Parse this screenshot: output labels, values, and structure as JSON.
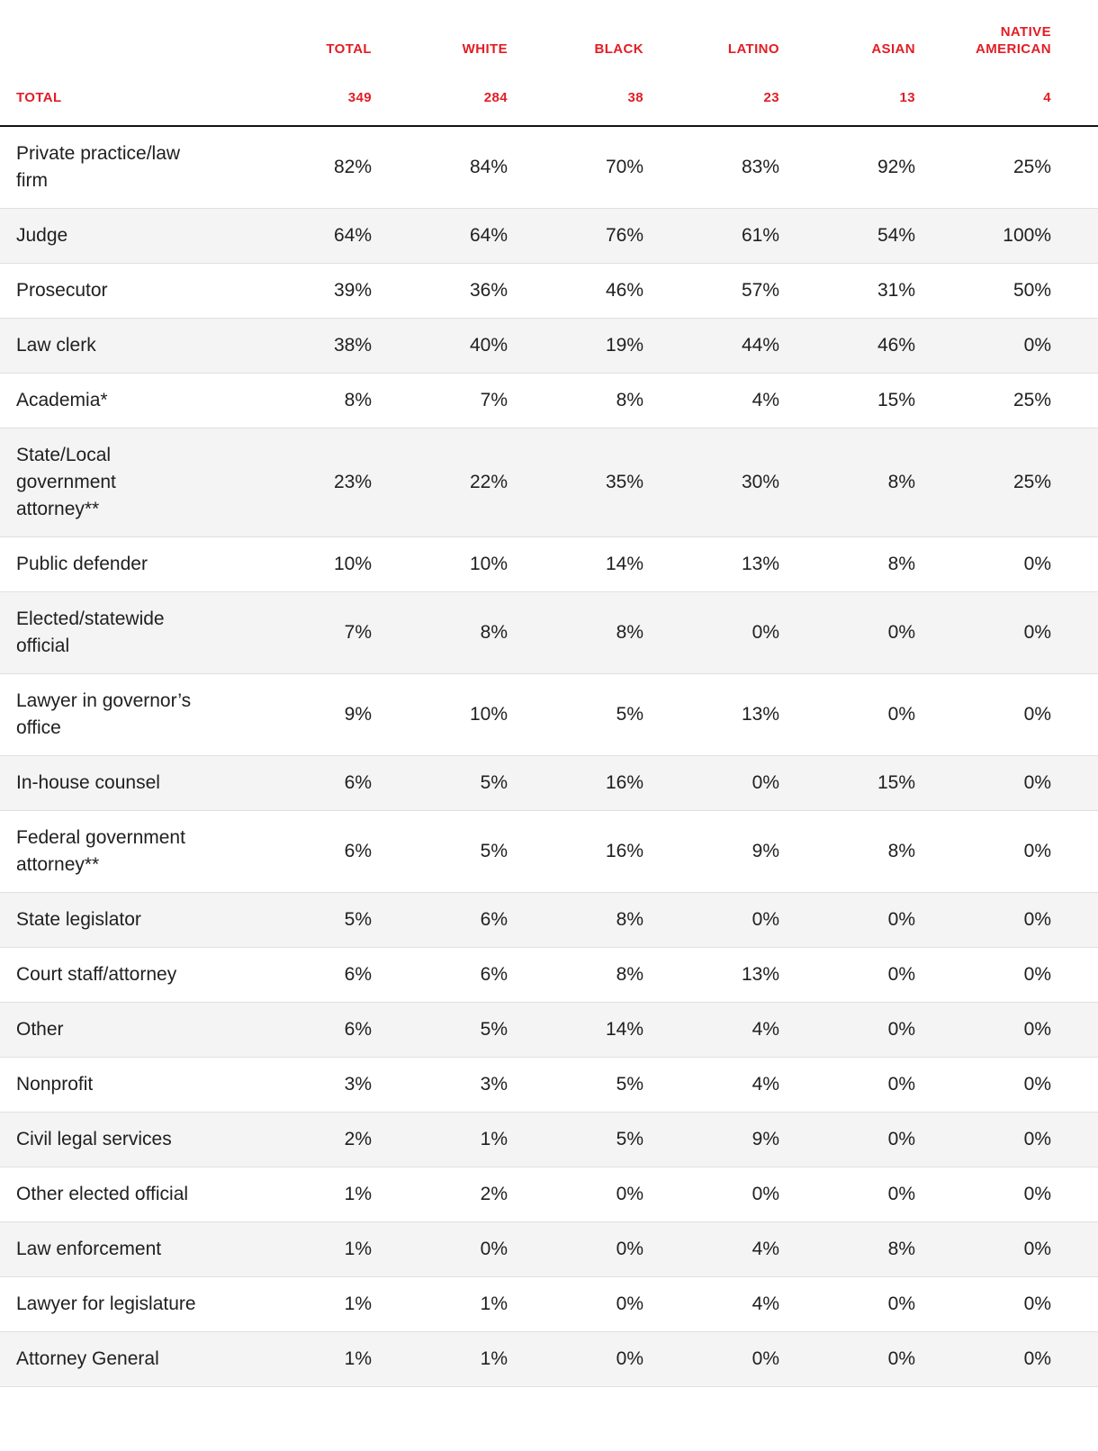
{
  "colors": {
    "accent_red": "#e21d25",
    "text": "#202020",
    "row_stripe": "#f4f4f4",
    "divider": "#e0e0e0",
    "header_rule": "#141414"
  },
  "chart_data": {
    "type": "table",
    "row_header_label": "TOTAL",
    "columns": [
      {
        "label": "TOTAL",
        "count": "349"
      },
      {
        "label": "WHITE",
        "count": "284"
      },
      {
        "label": "BLACK",
        "count": "38"
      },
      {
        "label": "LATINO",
        "count": "23"
      },
      {
        "label": "ASIAN",
        "count": "13"
      },
      {
        "label": "NATIVE AMERICAN",
        "count": "4"
      }
    ],
    "rows": [
      {
        "label": "Private practice/law firm",
        "values": [
          "82%",
          "84%",
          "70%",
          "83%",
          "92%",
          "25%"
        ]
      },
      {
        "label": "Judge",
        "values": [
          "64%",
          "64%",
          "76%",
          "61%",
          "54%",
          "100%"
        ]
      },
      {
        "label": "Prosecutor",
        "values": [
          "39%",
          "36%",
          "46%",
          "57%",
          "31%",
          "50%"
        ]
      },
      {
        "label": "Law clerk",
        "values": [
          "38%",
          "40%",
          "19%",
          "44%",
          "46%",
          "0%"
        ]
      },
      {
        "label": "Academia*",
        "values": [
          "8%",
          "7%",
          "8%",
          "4%",
          "15%",
          "25%"
        ]
      },
      {
        "label": "State/Local government attorney**",
        "values": [
          "23%",
          "22%",
          "35%",
          "30%",
          "8%",
          "25%"
        ]
      },
      {
        "label": "Public defender",
        "values": [
          "10%",
          "10%",
          "14%",
          "13%",
          "8%",
          "0%"
        ]
      },
      {
        "label": "Elected/statewide official",
        "values": [
          "7%",
          "8%",
          "8%",
          "0%",
          "0%",
          "0%"
        ]
      },
      {
        "label": "Lawyer in governor’s office",
        "values": [
          "9%",
          "10%",
          "5%",
          "13%",
          "0%",
          "0%"
        ]
      },
      {
        "label": "In-house counsel",
        "values": [
          "6%",
          "5%",
          "16%",
          "0%",
          "15%",
          "0%"
        ]
      },
      {
        "label": "Federal government attorney**",
        "values": [
          "6%",
          "5%",
          "16%",
          "9%",
          "8%",
          "0%"
        ]
      },
      {
        "label": "State legislator",
        "values": [
          "5%",
          "6%",
          "8%",
          "0%",
          "0%",
          "0%"
        ]
      },
      {
        "label": "Court staff/attorney",
        "values": [
          "6%",
          "6%",
          "8%",
          "13%",
          "0%",
          "0%"
        ]
      },
      {
        "label": "Other",
        "values": [
          "6%",
          "5%",
          "14%",
          "4%",
          "0%",
          "0%"
        ]
      },
      {
        "label": "Nonprofit",
        "values": [
          "3%",
          "3%",
          "5%",
          "4%",
          "0%",
          "0%"
        ]
      },
      {
        "label": "Civil legal services",
        "values": [
          "2%",
          "1%",
          "5%",
          "9%",
          "0%",
          "0%"
        ]
      },
      {
        "label": "Other elected official",
        "values": [
          "1%",
          "2%",
          "0%",
          "0%",
          "0%",
          "0%"
        ]
      },
      {
        "label": "Law enforcement",
        "values": [
          "1%",
          "0%",
          "0%",
          "4%",
          "8%",
          "0%"
        ]
      },
      {
        "label": "Lawyer for legislature",
        "values": [
          "1%",
          "1%",
          "0%",
          "4%",
          "0%",
          "0%"
        ]
      },
      {
        "label": "Attorney General",
        "values": [
          "1%",
          "1%",
          "0%",
          "0%",
          "0%",
          "0%"
        ]
      }
    ]
  }
}
